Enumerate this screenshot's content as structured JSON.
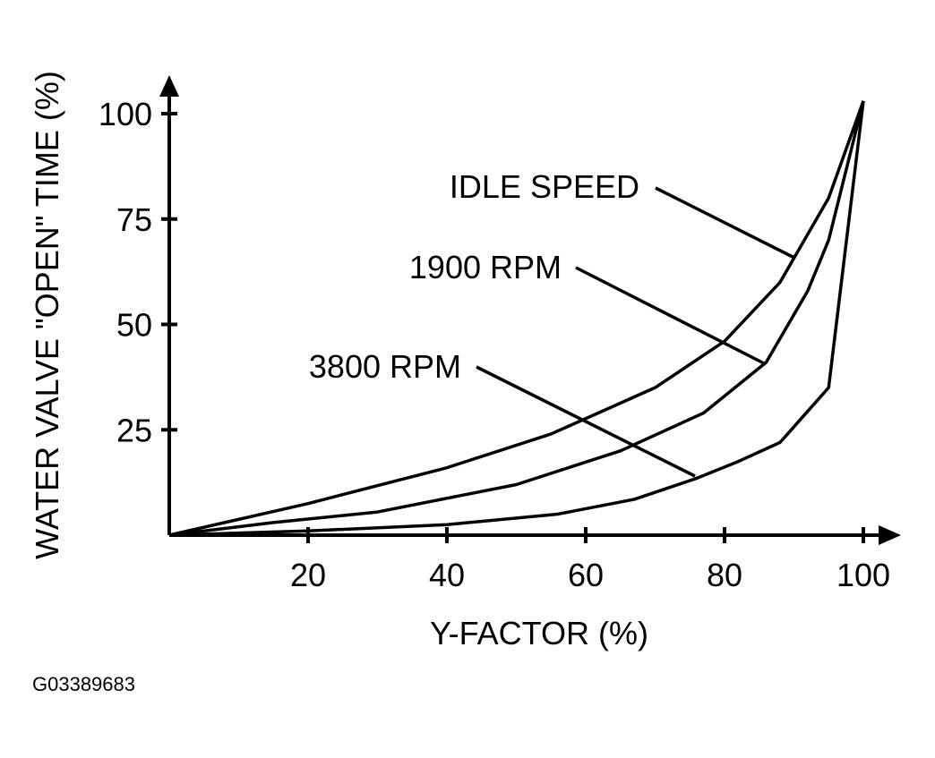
{
  "figure_id": "G03389683",
  "chart_data": {
    "type": "line",
    "xlabel": "Y-FACTOR (%)",
    "ylabel": "WATER VALVE \"OPEN\" TIME (%)",
    "xlim": [
      0,
      100
    ],
    "ylim": [
      0,
      100
    ],
    "x_ticks": [
      20,
      40,
      60,
      80,
      100
    ],
    "y_ticks": [
      25,
      50,
      75,
      100
    ],
    "grid": false,
    "series": [
      {
        "name": "IDLE SPEED",
        "x": [
          0,
          20,
          40,
          55,
          70,
          80,
          88,
          95,
          100
        ],
        "y": [
          0,
          7.5,
          16,
          24,
          35,
          46,
          60,
          80,
          103
        ]
      },
      {
        "name": "1900 RPM",
        "x": [
          0,
          15,
          30,
          50,
          65,
          77,
          86,
          92,
          95,
          100
        ],
        "y": [
          0,
          3,
          5.5,
          12,
          20,
          29,
          41,
          58,
          70,
          103
        ]
      },
      {
        "name": "3800 RPM",
        "x": [
          0,
          20,
          40,
          56,
          67,
          76,
          82,
          88,
          95,
          100
        ],
        "y": [
          0,
          1,
          2.5,
          5,
          8.5,
          13.5,
          17.5,
          22,
          35,
          103
        ]
      }
    ]
  }
}
